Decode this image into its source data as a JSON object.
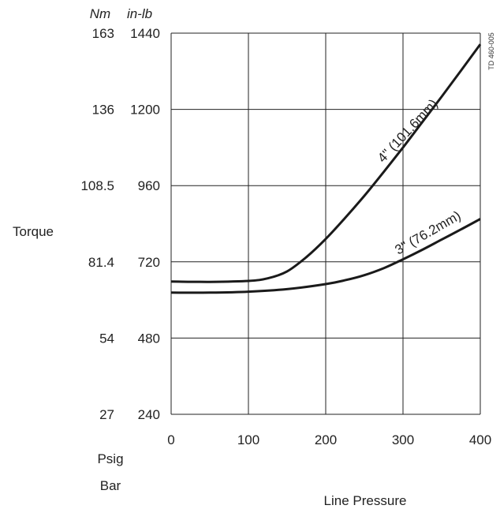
{
  "chart_data": {
    "type": "line",
    "ylabel": "Torque",
    "xlabel": "Line Pressure",
    "y_units": [
      "Nm",
      "in-lb"
    ],
    "y_ticks_nm": [
      "163",
      "136",
      "108.5",
      "81.4",
      "54",
      "27"
    ],
    "y_ticks_inlb": [
      "1440",
      "1200",
      "960",
      "720",
      "480",
      "240"
    ],
    "ylim": [
      240,
      1440
    ],
    "x_units_labels": [
      "Psig",
      "Bar"
    ],
    "x_ticks": [
      "0",
      "100",
      "200",
      "300",
      "400"
    ],
    "xlim": [
      0,
      400
    ],
    "grid": true,
    "figure_code": "TD 460-005",
    "series": [
      {
        "name": "4\" (101.6mm)",
        "x": [
          0,
          50,
          100,
          125,
          150,
          175,
          200,
          225,
          250,
          275,
          300,
          325,
          350,
          375,
          400
        ],
        "values": [
          658,
          657,
          660,
          668,
          690,
          735,
          792,
          858,
          928,
          1003,
          1080,
          1160,
          1240,
          1322,
          1405
        ]
      },
      {
        "name": "3\" (76.2mm)",
        "x": [
          0,
          50,
          100,
          150,
          200,
          225,
          250,
          275,
          300,
          325,
          350,
          375,
          400
        ],
        "values": [
          623,
          623,
          626,
          634,
          650,
          662,
          678,
          700,
          728,
          758,
          790,
          822,
          855
        ]
      }
    ]
  }
}
